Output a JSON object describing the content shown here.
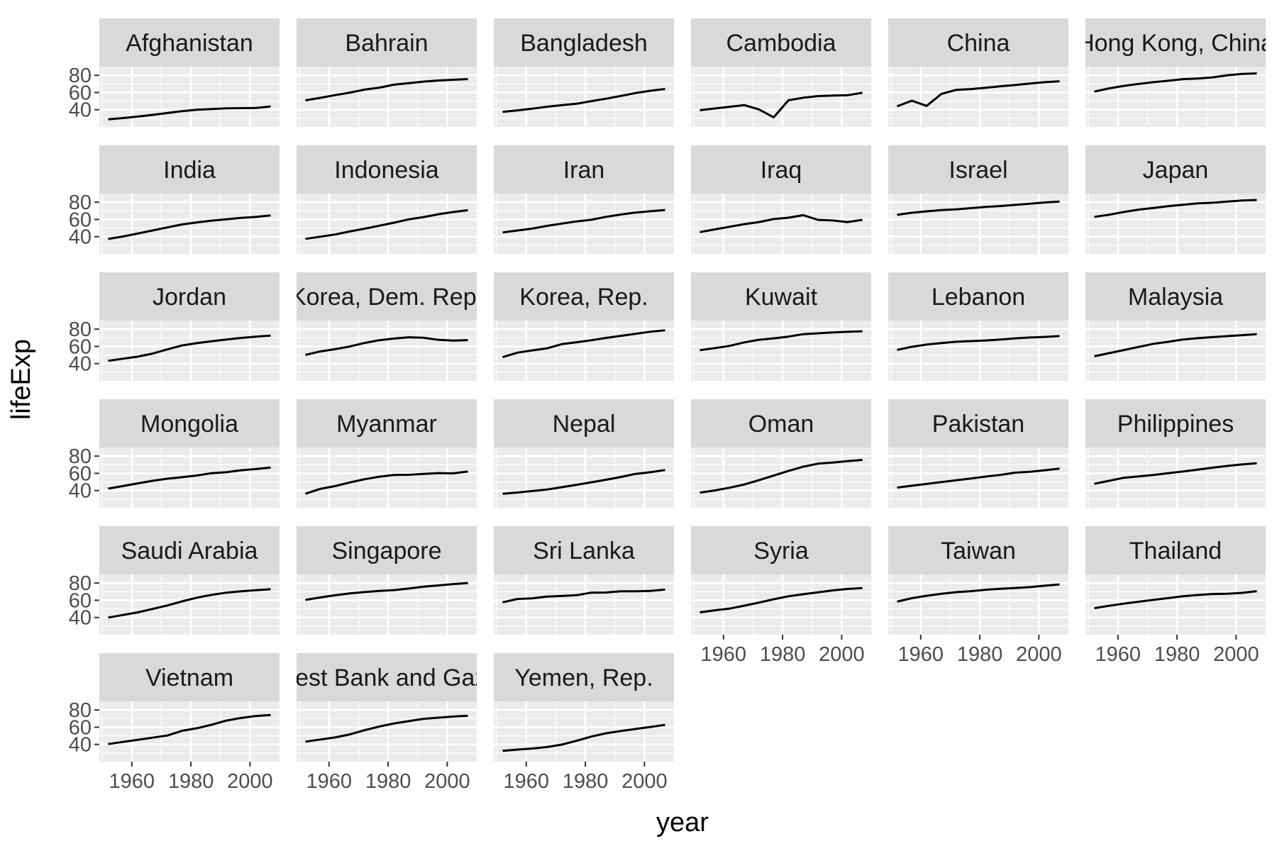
{
  "chart_data": {
    "type": "line",
    "facet": "country",
    "xlabel": "year",
    "ylabel": "lifeExp",
    "xlim": [
      1949,
      2010
    ],
    "ylim": [
      20,
      90
    ],
    "x_ticks": [
      1960,
      1980,
      2000
    ],
    "y_ticks": [
      40,
      60,
      80
    ],
    "grid": true,
    "x": [
      1952,
      1957,
      1962,
      1967,
      1972,
      1977,
      1982,
      1987,
      1992,
      1997,
      2002,
      2007
    ],
    "series": [
      {
        "name": "Afghanistan",
        "values": [
          28.8,
          30.3,
          32.0,
          34.0,
          36.1,
          38.4,
          39.9,
          40.8,
          41.7,
          41.8,
          42.1,
          43.8
        ]
      },
      {
        "name": "Bahrain",
        "values": [
          50.9,
          53.8,
          56.9,
          59.9,
          63.3,
          65.6,
          69.1,
          70.8,
          72.6,
          73.9,
          74.8,
          75.6
        ]
      },
      {
        "name": "Bangladesh",
        "values": [
          37.5,
          39.3,
          41.2,
          43.5,
          45.3,
          46.9,
          50.0,
          52.8,
          56.0,
          59.4,
          62.0,
          64.1
        ]
      },
      {
        "name": "Cambodia",
        "values": [
          39.4,
          41.4,
          43.4,
          45.4,
          40.3,
          31.2,
          51.0,
          53.9,
          55.8,
          56.5,
          56.8,
          59.7
        ]
      },
      {
        "name": "China",
        "values": [
          44.0,
          50.5,
          44.5,
          58.4,
          63.1,
          64.0,
          65.5,
          67.3,
          68.7,
          70.4,
          72.0,
          73.0
        ]
      },
      {
        "name": "Hong Kong, China",
        "values": [
          61.0,
          64.8,
          67.7,
          70.0,
          72.0,
          73.6,
          75.5,
          76.2,
          77.6,
          80.0,
          81.5,
          82.2
        ]
      },
      {
        "name": "India",
        "values": [
          37.4,
          40.2,
          43.6,
          47.2,
          50.7,
          54.2,
          56.6,
          58.6,
          60.2,
          61.8,
          62.9,
          64.7
        ]
      },
      {
        "name": "Indonesia",
        "values": [
          37.5,
          39.9,
          42.5,
          46.0,
          49.2,
          52.7,
          56.2,
          60.1,
          62.7,
          66.0,
          68.6,
          70.7
        ]
      },
      {
        "name": "Iran",
        "values": [
          44.9,
          47.2,
          49.3,
          52.5,
          55.2,
          57.7,
          59.6,
          63.0,
          65.7,
          68.0,
          69.5,
          71.0
        ]
      },
      {
        "name": "Iraq",
        "values": [
          45.3,
          48.4,
          51.5,
          54.5,
          57.0,
          60.4,
          62.0,
          65.0,
          59.5,
          58.8,
          57.0,
          59.5
        ]
      },
      {
        "name": "Israel",
        "values": [
          65.4,
          67.8,
          69.4,
          70.8,
          71.6,
          73.1,
          74.5,
          75.6,
          76.9,
          78.3,
          79.7,
          80.7
        ]
      },
      {
        "name": "Japan",
        "values": [
          63.0,
          65.5,
          68.7,
          71.4,
          73.4,
          75.4,
          77.1,
          78.7,
          79.4,
          80.7,
          82.0,
          82.6
        ]
      },
      {
        "name": "Jordan",
        "values": [
          43.2,
          45.7,
          48.1,
          51.6,
          56.5,
          61.1,
          63.7,
          65.9,
          68.0,
          69.8,
          71.3,
          72.5
        ]
      },
      {
        "name": "Korea, Dem. Rep.",
        "values": [
          50.1,
          54.1,
          56.7,
          59.9,
          64.0,
          67.2,
          69.1,
          70.6,
          70.0,
          67.7,
          66.7,
          67.3
        ]
      },
      {
        "name": "Korea, Rep.",
        "values": [
          47.5,
          52.7,
          55.3,
          57.7,
          62.6,
          64.8,
          67.1,
          69.8,
          72.2,
          74.6,
          77.0,
          78.6
        ]
      },
      {
        "name": "Kuwait",
        "values": [
          55.6,
          58.0,
          60.5,
          64.6,
          67.7,
          69.3,
          71.3,
          74.2,
          75.2,
          76.2,
          76.9,
          77.6
        ]
      },
      {
        "name": "Lebanon",
        "values": [
          55.9,
          59.5,
          62.1,
          63.9,
          65.4,
          66.1,
          66.9,
          67.9,
          69.3,
          70.3,
          71.0,
          72.0
        ]
      },
      {
        "name": "Malaysia",
        "values": [
          48.5,
          52.1,
          55.7,
          59.4,
          63.0,
          65.3,
          68.0,
          69.5,
          70.7,
          71.9,
          73.0,
          74.2
        ]
      },
      {
        "name": "Mongolia",
        "values": [
          42.2,
          45.2,
          48.3,
          51.3,
          53.8,
          55.5,
          57.5,
          60.2,
          61.3,
          63.6,
          65.0,
          66.8
        ]
      },
      {
        "name": "Myanmar",
        "values": [
          36.3,
          41.9,
          45.1,
          49.4,
          53.1,
          56.1,
          58.1,
          58.3,
          59.3,
          60.3,
          59.9,
          62.1
        ]
      },
      {
        "name": "Nepal",
        "values": [
          36.2,
          37.7,
          39.4,
          41.2,
          43.9,
          46.7,
          49.6,
          52.5,
          55.7,
          59.4,
          61.3,
          63.8
        ]
      },
      {
        "name": "Oman",
        "values": [
          37.6,
          40.1,
          43.2,
          47.0,
          52.1,
          57.4,
          62.7,
          67.7,
          71.2,
          72.5,
          74.2,
          75.6
        ]
      },
      {
        "name": "Pakistan",
        "values": [
          43.4,
          45.6,
          47.7,
          49.8,
          51.9,
          54.0,
          56.2,
          58.2,
          60.8,
          61.8,
          63.6,
          65.5
        ]
      },
      {
        "name": "Philippines",
        "values": [
          47.8,
          51.3,
          54.8,
          56.4,
          58.1,
          60.1,
          62.1,
          64.2,
          66.5,
          68.6,
          70.3,
          71.7
        ]
      },
      {
        "name": "Saudi Arabia",
        "values": [
          39.9,
          42.9,
          45.9,
          49.9,
          53.9,
          58.7,
          63.0,
          66.3,
          68.8,
          70.5,
          71.6,
          72.8
        ]
      },
      {
        "name": "Singapore",
        "values": [
          60.4,
          63.2,
          65.8,
          67.9,
          69.5,
          70.8,
          71.8,
          73.6,
          75.8,
          77.2,
          78.8,
          80.0
        ]
      },
      {
        "name": "Sri Lanka",
        "values": [
          57.6,
          61.5,
          62.2,
          64.3,
          65.0,
          65.9,
          68.8,
          69.0,
          70.4,
          70.5,
          70.8,
          72.4
        ]
      },
      {
        "name": "Syria",
        "values": [
          45.9,
          48.3,
          50.3,
          53.7,
          57.3,
          61.2,
          64.6,
          67.0,
          69.2,
          71.5,
          73.1,
          74.1
        ]
      },
      {
        "name": "Taiwan",
        "values": [
          58.5,
          62.4,
          65.2,
          67.5,
          69.4,
          70.6,
          72.2,
          73.4,
          74.3,
          75.3,
          76.9,
          78.4
        ]
      },
      {
        "name": "Thailand",
        "values": [
          50.8,
          53.6,
          56.1,
          58.3,
          60.4,
          62.5,
          64.6,
          66.1,
          67.3,
          67.5,
          68.6,
          70.6
        ]
      },
      {
        "name": "Vietnam",
        "values": [
          40.4,
          42.9,
          45.4,
          47.8,
          50.3,
          55.8,
          58.8,
          62.8,
          67.7,
          70.7,
          73.0,
          74.2
        ]
      },
      {
        "name": "West Bank and Gaza",
        "values": [
          43.2,
          45.7,
          48.1,
          51.6,
          56.5,
          60.8,
          64.4,
          67.0,
          69.7,
          71.1,
          72.4,
          73.4
        ]
      },
      {
        "name": "Yemen, Rep.",
        "values": [
          32.5,
          34.0,
          35.2,
          37.0,
          39.8,
          44.2,
          49.1,
          52.9,
          55.6,
          58.0,
          60.3,
          62.7
        ]
      }
    ]
  }
}
